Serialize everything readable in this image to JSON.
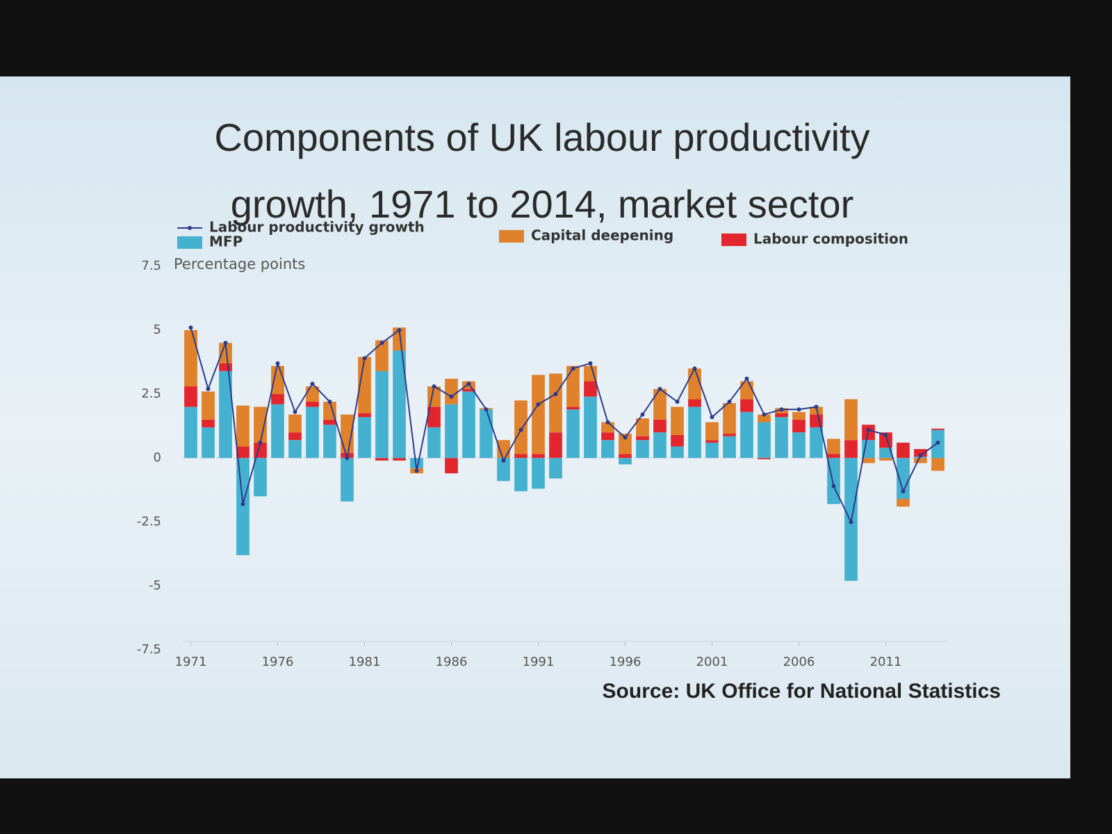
{
  "chart_data": {
    "type": "bar",
    "stacked": true,
    "title": "Components of UK labour productivity growth, 1971 to 2014, market sector",
    "ylabel": "Percentage points",
    "source": "Source: UK Office for National Statistics",
    "x": [
      1971,
      1972,
      1973,
      1974,
      1975,
      1976,
      1977,
      1978,
      1979,
      1980,
      1981,
      1982,
      1983,
      1984,
      1985,
      1986,
      1987,
      1988,
      1989,
      1990,
      1991,
      1992,
      1993,
      1994,
      1995,
      1996,
      1997,
      1998,
      1999,
      2000,
      2001,
      2002,
      2003,
      2004,
      2005,
      2006,
      2007,
      2008,
      2009,
      2010,
      2011,
      2012,
      2013,
      2014
    ],
    "xlim": [
      1970.5,
      2014.5
    ],
    "xticks": [
      1971,
      1976,
      1981,
      1986,
      1991,
      1996,
      2001,
      2006,
      2011
    ],
    "ylim": [
      -7.5,
      7.5
    ],
    "yticks": [
      -7.5,
      -5,
      -2.5,
      0,
      2.5,
      5,
      7.5
    ],
    "series": [
      {
        "name": "Labour productivity growth",
        "type": "line",
        "color": "#2d3a8a",
        "values": [
          5.1,
          2.7,
          4.5,
          -1.8,
          0.6,
          3.7,
          1.8,
          2.9,
          2.2,
          0.0,
          3.9,
          4.5,
          5.0,
          -0.5,
          2.8,
          2.4,
          2.9,
          1.9,
          -0.1,
          1.1,
          2.1,
          2.5,
          3.5,
          3.7,
          1.4,
          0.8,
          1.7,
          2.7,
          2.2,
          3.5,
          1.6,
          2.2,
          3.1,
          1.7,
          1.9,
          1.9,
          2.0,
          -1.1,
          -2.5,
          1.1,
          0.9,
          -1.3,
          0.1,
          0.6
        ]
      },
      {
        "name": "MFP",
        "type": "bar",
        "color": "#45b1d1",
        "values": [
          2.0,
          1.2,
          3.4,
          -3.8,
          -1.5,
          2.1,
          0.7,
          2.0,
          1.3,
          -1.7,
          1.6,
          3.4,
          4.2,
          -0.4,
          1.2,
          2.1,
          2.6,
          1.9,
          -0.9,
          -1.3,
          -1.2,
          -0.8,
          1.9,
          2.4,
          0.7,
          -0.25,
          0.7,
          1.0,
          0.45,
          2.0,
          0.6,
          0.85,
          1.8,
          1.4,
          1.6,
          1.0,
          1.2,
          -1.8,
          -4.8,
          0.7,
          0.4,
          -1.6,
          0.05,
          1.1
        ]
      },
      {
        "name": "Labour composition",
        "type": "bar",
        "color": "#e3262d",
        "values": [
          0.8,
          0.3,
          0.3,
          0.45,
          0.6,
          0.4,
          0.3,
          0.2,
          0.2,
          0.2,
          0.15,
          -0.1,
          -0.1,
          0.0,
          0.8,
          -0.6,
          0.1,
          0.0,
          0.0,
          0.15,
          0.15,
          1.0,
          0.1,
          0.6,
          0.3,
          0.15,
          0.15,
          0.5,
          0.45,
          0.3,
          0.1,
          0.1,
          0.5,
          -0.05,
          0.15,
          0.5,
          0.5,
          0.15,
          0.7,
          0.6,
          0.6,
          0.6,
          0.3,
          0.05
        ]
      },
      {
        "name": "Capital deepening",
        "type": "bar",
        "color": "#e0812b",
        "values": [
          2.2,
          1.1,
          0.8,
          1.6,
          1.4,
          1.1,
          0.7,
          0.6,
          0.7,
          1.5,
          2.2,
          1.2,
          0.9,
          -0.2,
          0.8,
          1.0,
          0.3,
          0.05,
          0.7,
          2.1,
          3.1,
          2.3,
          1.6,
          0.6,
          0.4,
          0.8,
          0.7,
          1.2,
          1.1,
          1.2,
          0.7,
          1.2,
          0.7,
          0.3,
          0.2,
          0.3,
          0.3,
          0.6,
          1.6,
          -0.2,
          -0.1,
          -0.3,
          -0.2,
          -0.5
        ]
      }
    ]
  }
}
